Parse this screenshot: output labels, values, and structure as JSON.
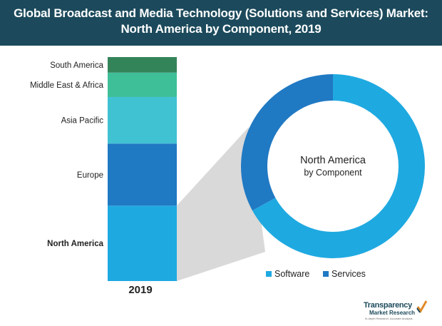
{
  "header": {
    "title_line1": "Global Broadcast and Media Technology (Solutions and Services) Market:",
    "title_line2": "North America by Component, 2019"
  },
  "chart_data": [
    {
      "type": "bar",
      "stacked": true,
      "title": "Global Broadcast and Media Technology (Solutions and Services) Market",
      "categories": [
        "2019"
      ],
      "series": [
        {
          "name": "North America",
          "values": [
            34
          ],
          "color": "#1fa9e1",
          "emphasis": true
        },
        {
          "name": "Europe",
          "values": [
            28
          ],
          "color": "#2079c3"
        },
        {
          "name": "Asia Pacific",
          "values": [
            21
          ],
          "color": "#40c2d3"
        },
        {
          "name": "Middle East & Africa",
          "values": [
            11
          ],
          "color": "#3ebf98"
        },
        {
          "name": "South America",
          "values": [
            7
          ],
          "color": "#34845a"
        }
      ],
      "xlabel": "2019"
    },
    {
      "type": "pie",
      "donut": true,
      "title": "North America by Component",
      "center_label": [
        "North America",
        "by Component"
      ],
      "slices": [
        {
          "name": "Software",
          "value": 67,
          "color": "#1fa9e1"
        },
        {
          "name": "Services",
          "value": 33,
          "color": "#2079c3"
        }
      ],
      "legend_position": "bottom"
    }
  ],
  "logo": {
    "line1": "Transparency",
    "line2": "Market Research",
    "tagline": "In-depth Research. Accurate Analysis."
  }
}
